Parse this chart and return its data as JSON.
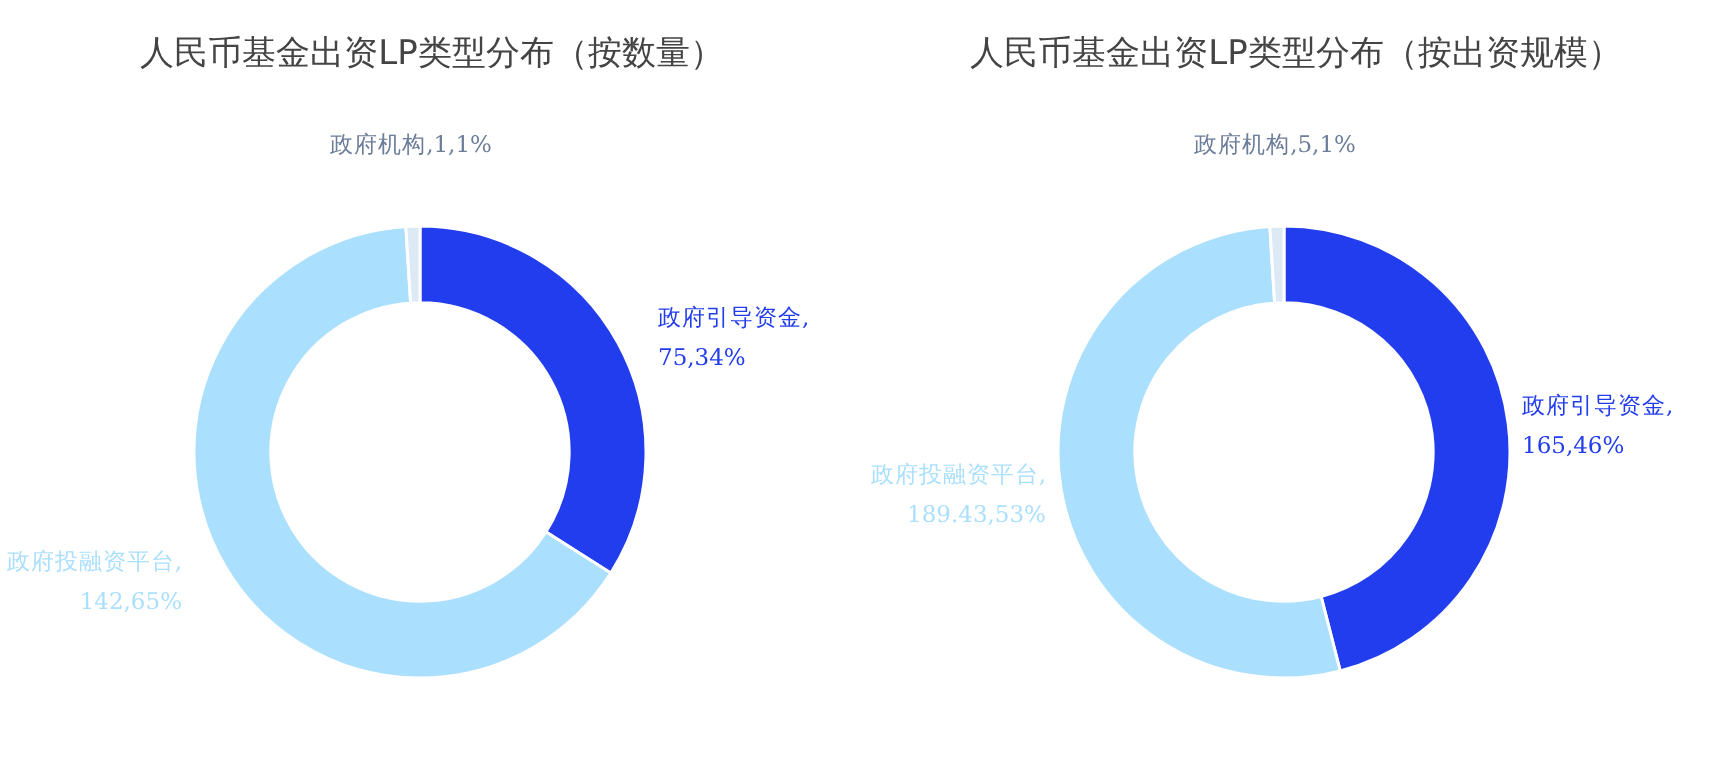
{
  "chart_data": [
    {
      "type": "donut",
      "title": "人民币基金出资LP类型分布（按数量）",
      "categories": [
        "政府引导资金,75,34%",
        "政府投融资平台,142,65%",
        "政府机构,1,1%"
      ],
      "values": [
        34,
        65,
        1
      ],
      "colors": [
        "#223ded",
        "#aadffd",
        "#dde9f5"
      ]
    },
    {
      "type": "donut",
      "title": "人民币基金出资LP类型分布（按出资规模）",
      "categories": [
        "政府引导资金,165,46%",
        "政府投融资平台,189.43,53%",
        "政府机构,5,1%"
      ],
      "values": [
        46,
        53,
        1
      ],
      "colors": [
        "#223ded",
        "#aadffd",
        "#dde9f5"
      ]
    }
  ]
}
